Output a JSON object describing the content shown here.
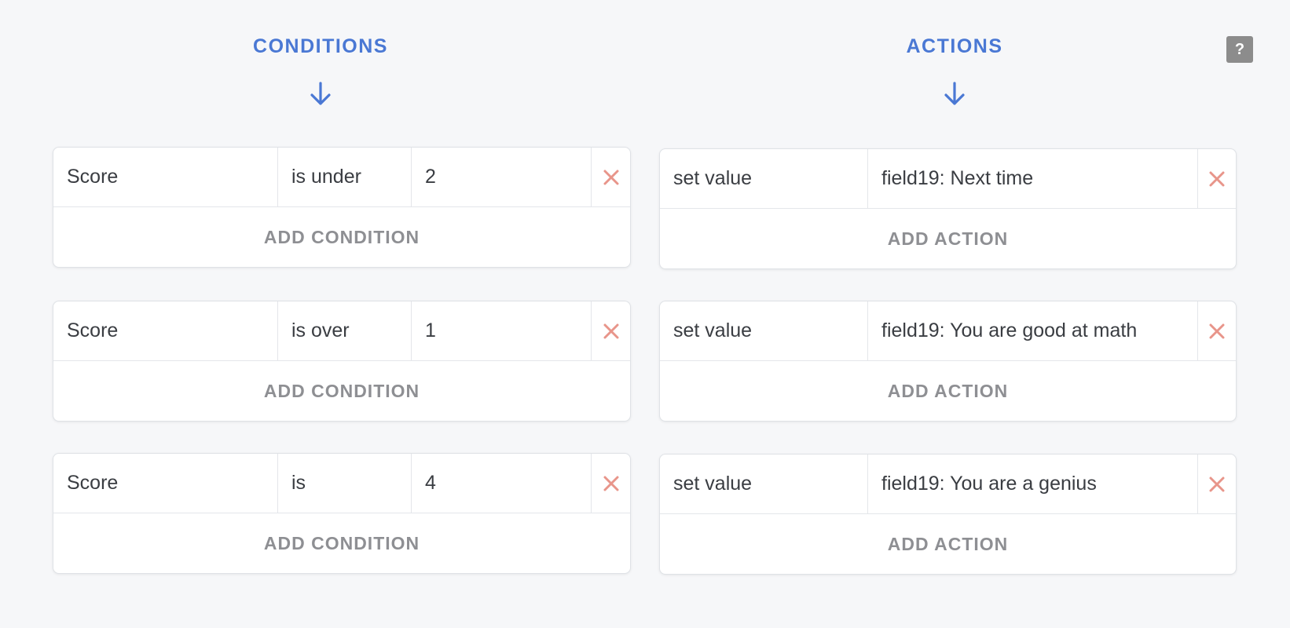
{
  "headers": {
    "conditions": "CONDITIONS",
    "actions": "ACTIONS"
  },
  "help": {
    "label": "?"
  },
  "icons": {
    "header_arrow": "arrow-down-icon",
    "delete": "close-x-icon"
  },
  "colors": {
    "accent": "#4a78d4",
    "delete": "#e8958a",
    "muted_text": "#8e8f93",
    "help_bg": "#8c8c8c"
  },
  "rules": [
    {
      "condition": {
        "field": "Score",
        "operator": "is under",
        "value": "2"
      },
      "add_condition_label": "ADD CONDITION",
      "action": {
        "type": "set value",
        "value": "field19: Next time"
      },
      "add_action_label": "ADD ACTION"
    },
    {
      "condition": {
        "field": "Score",
        "operator": "is over",
        "value": "1"
      },
      "add_condition_label": "ADD CONDITION",
      "action": {
        "type": "set value",
        "value": "field19: You are good at math"
      },
      "add_action_label": "ADD ACTION"
    },
    {
      "condition": {
        "field": "Score",
        "operator": "is",
        "value": "4"
      },
      "add_condition_label": "ADD CONDITION",
      "action": {
        "type": "set value",
        "value": "field19: You are a genius"
      },
      "add_action_label": "ADD ACTION"
    }
  ]
}
